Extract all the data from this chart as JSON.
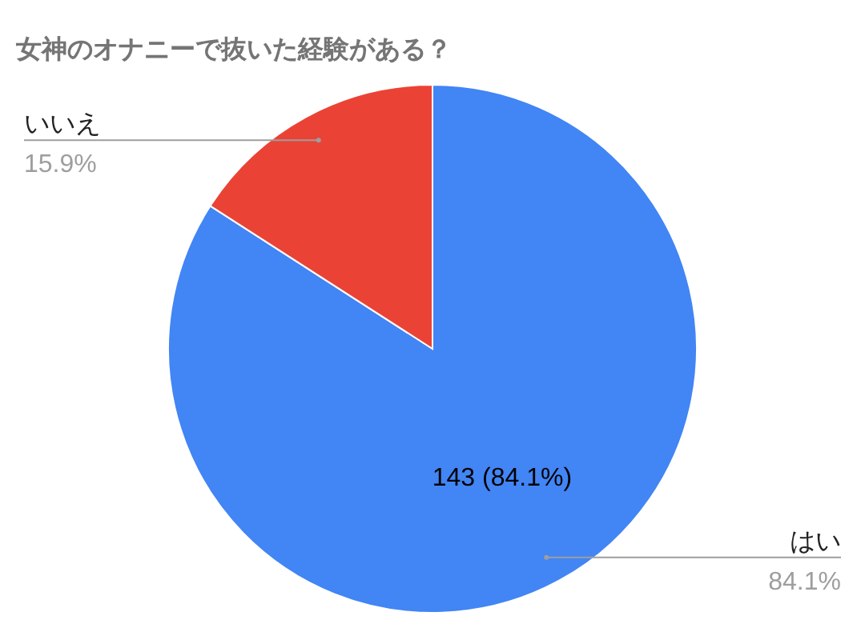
{
  "chart_data": {
    "type": "pie",
    "title": "女神のオナニーで抜いた経験がある？",
    "categories": [
      "はい",
      "いいえ"
    ],
    "values": [
      84.1,
      15.9
    ],
    "colors": [
      "#4285f4",
      "#ea4335"
    ],
    "value_labels": [
      "84.1%",
      "15.9%"
    ],
    "annotations": [
      {
        "text": "143 (84.1%)",
        "x": "はい"
      }
    ]
  }
}
